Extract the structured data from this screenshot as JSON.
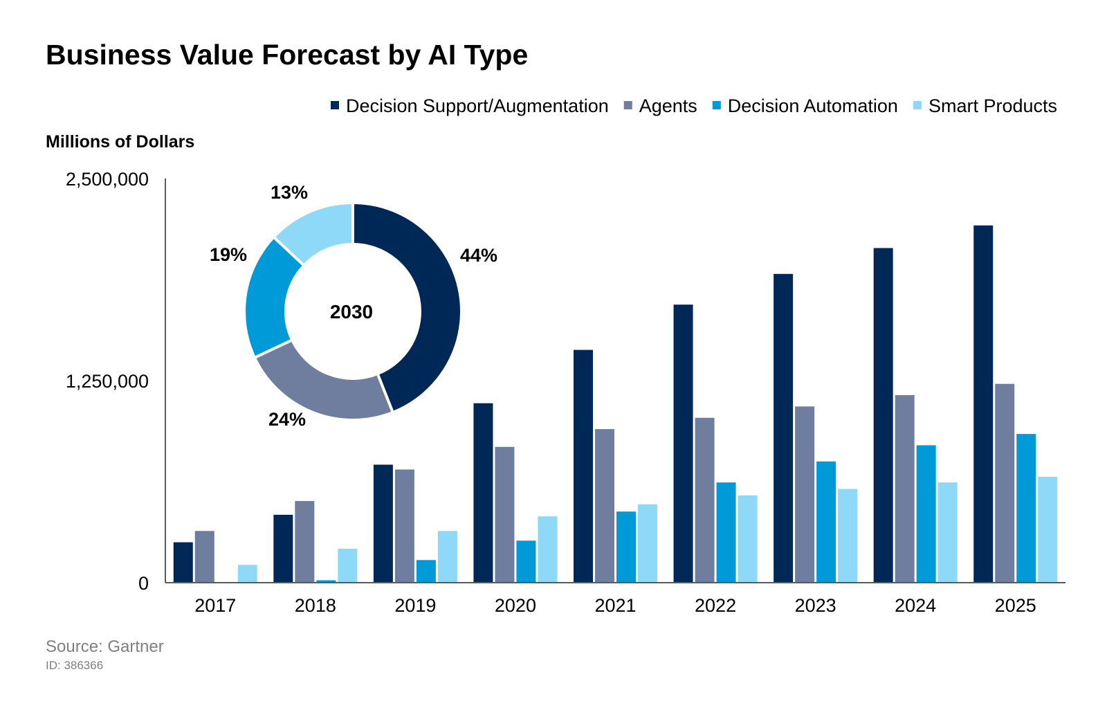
{
  "chart_data": {
    "type": "bar",
    "title": "Business Value Forecast by AI Type",
    "ylabel": "Millions of Dollars",
    "xlabel": "",
    "ylim": [
      0,
      2500000
    ],
    "yticks": [
      "0",
      "1,250,000",
      "2,500,000"
    ],
    "yticks_values": [
      0,
      1250000,
      2500000
    ],
    "grid": false,
    "legend_position": "top-right",
    "categories": [
      "2017",
      "2018",
      "2019",
      "2020",
      "2021",
      "2022",
      "2023",
      "2024",
      "2025"
    ],
    "series": [
      {
        "name": "Decision Support/Augmentation",
        "color": "#002856",
        "values": [
          250000,
          420000,
          730000,
          1110000,
          1440000,
          1720000,
          1910000,
          2070000,
          2210000
        ]
      },
      {
        "name": "Agents",
        "color": "#6f7e9e",
        "values": [
          320000,
          505000,
          700000,
          840000,
          950000,
          1020000,
          1090000,
          1160000,
          1230000
        ]
      },
      {
        "name": "Decision Automation",
        "color": "#009ad9",
        "values": [
          0,
          15000,
          140000,
          260000,
          440000,
          620000,
          750000,
          850000,
          920000
        ]
      },
      {
        "name": "Smart Products",
        "color": "#8dd9f7",
        "values": [
          110000,
          210000,
          320000,
          410000,
          485000,
          540000,
          580000,
          620000,
          655000
        ]
      }
    ],
    "inset_donut": {
      "type": "pie",
      "center_label": "2030",
      "slices": [
        {
          "series": "Decision Support/Augmentation",
          "label": "44%",
          "value": 44,
          "color": "#002856"
        },
        {
          "series": "Agents",
          "label": "24%",
          "value": 24,
          "color": "#6f7e9e"
        },
        {
          "series": "Decision Automation",
          "label": "19%",
          "value": 19,
          "color": "#009ad9"
        },
        {
          "series": "Smart Products",
          "label": "13%",
          "value": 13,
          "color": "#8dd9f7"
        }
      ]
    }
  },
  "source": "Source: Gartner",
  "source_id": "ID: 386366"
}
